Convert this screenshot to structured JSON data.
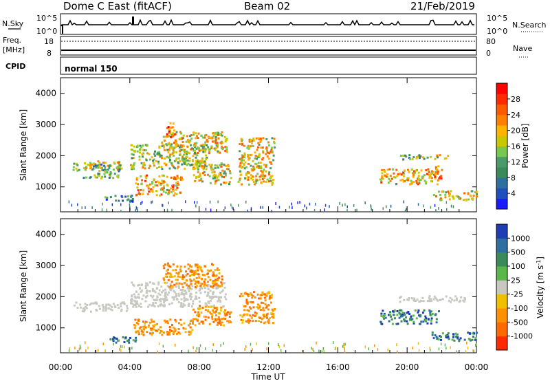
{
  "header": {
    "station": "Dome C East (fitACF)",
    "beam": "Beam 02",
    "date": "21/Feb/2019"
  },
  "top_panels": {
    "nsky_label": "N.Sky",
    "nsky_top": "10^5",
    "nsky_bottom": "10^0",
    "nsearch_label": "N.Search",
    "nsearch_top": "10^5",
    "nsearch_bottom": "10^0",
    "freq_label": "Freq.",
    "freq_unit": "[MHz]",
    "freq_top": "18",
    "freq_bottom": "8",
    "nave_label": "Nave",
    "nave_top": "80",
    "nave_bottom": "0",
    "cpid_label": "CPID",
    "cpid_value": "normal 150"
  },
  "chart_data": [
    {
      "type": "heatmap",
      "name": "power",
      "ylabel": "Slant Range [km]",
      "yticks": [
        "1000",
        "2000",
        "3000",
        "4000"
      ],
      "ylim": [
        200,
        4500
      ],
      "xlim": [
        0,
        24
      ],
      "colorbar": {
        "label": "Power [dB]",
        "ticks": [
          "4",
          "8",
          "12",
          "16",
          "20",
          "24",
          "28"
        ],
        "colors": [
          "#1a1aff",
          "#1f4fbf",
          "#2f6f9f",
          "#3a8a5a",
          "#4a9a6a",
          "#78c850",
          "#c8c800",
          "#ffb400",
          "#ff8000",
          "#ff5a00",
          "#ff2a00",
          "#ff0000"
        ]
      },
      "scatter_regions": [
        {
          "x": [
            0.7,
            3.6
          ],
          "y": [
            1550,
            1850
          ],
          "level": 0.55
        },
        {
          "x": [
            1.8,
            3.4
          ],
          "y": [
            1300,
            1750
          ],
          "level": 0.35
        },
        {
          "x": [
            0.9,
            1.8
          ],
          "y": [
            1280,
            1350
          ],
          "level": 0.3
        },
        {
          "x": [
            2.4,
            4.2
          ],
          "y": [
            550,
            750
          ],
          "level": 0.25
        },
        {
          "x": [
            4.0,
            8.4
          ],
          "y": [
            1600,
            2400
          ],
          "level": 0.5
        },
        {
          "x": [
            4.3,
            7.0
          ],
          "y": [
            750,
            1400
          ],
          "level": 0.65
        },
        {
          "x": [
            5.8,
            9.6
          ],
          "y": [
            2100,
            2800
          ],
          "level": 0.6
        },
        {
          "x": [
            6.0,
            6.6
          ],
          "y": [
            2600,
            3100
          ],
          "level": 0.8
        },
        {
          "x": [
            7.6,
            9.8
          ],
          "y": [
            1100,
            1800
          ],
          "level": 0.55
        },
        {
          "x": [
            10.2,
            12.3
          ],
          "y": [
            1100,
            2600
          ],
          "level": 0.6
        },
        {
          "x": [
            18.4,
            21.8
          ],
          "y": [
            1100,
            1600
          ],
          "level": 0.65
        },
        {
          "x": [
            19.5,
            22.5
          ],
          "y": [
            1900,
            2050
          ],
          "level": 0.45
        },
        {
          "x": [
            21.4,
            24.0
          ],
          "y": [
            600,
            900
          ],
          "level": 0.6
        },
        {
          "x": [
            21.2,
            22.0
          ],
          "y": [
            1300,
            1700
          ],
          "level": 0.7
        }
      ]
    },
    {
      "type": "heatmap",
      "name": "velocity",
      "ylabel": "Slant Range [km]",
      "xlabel": "Time UT",
      "xticks": [
        "00:00",
        "04:00",
        "08:00",
        "12:00",
        "16:00",
        "20:00",
        "00:00"
      ],
      "yticks": [
        "1000",
        "2000",
        "3000",
        "4000"
      ],
      "ylim": [
        200,
        4500
      ],
      "xlim": [
        0,
        24
      ],
      "colorbar": {
        "label": "Velocity [m s^-1]",
        "ticks": [
          "1000",
          "500",
          "100",
          "25",
          "-25",
          "-100",
          "-500",
          "-1000"
        ],
        "colors": [
          "#1e3cb4",
          "#2f6fa0",
          "#3a8a5a",
          "#5ab84a",
          "#c8c8c0",
          "#f0c000",
          "#ff9000",
          "#ff6a00",
          "#ff2a00"
        ]
      },
      "ground_scatter_color": "#c8c8c0",
      "scatter_regions": [
        {
          "x": [
            0.7,
            3.8
          ],
          "y": [
            1550,
            1850
          ],
          "class": "ground"
        },
        {
          "x": [
            4.0,
            9.5
          ],
          "y": [
            1700,
            2500
          ],
          "class": "ground"
        },
        {
          "x": [
            4.2,
            7.6
          ],
          "y": [
            800,
            1300
          ],
          "class": "away"
        },
        {
          "x": [
            5.8,
            9.3
          ],
          "y": [
            2300,
            3100
          ],
          "class": "away"
        },
        {
          "x": [
            7.6,
            9.8
          ],
          "y": [
            1100,
            1750
          ],
          "class": "away"
        },
        {
          "x": [
            10.3,
            12.3
          ],
          "y": [
            1150,
            2200
          ],
          "class": "away"
        },
        {
          "x": [
            2.3,
            4.3
          ],
          "y": [
            550,
            750
          ],
          "class": "toward"
        },
        {
          "x": [
            18.4,
            21.8
          ],
          "y": [
            1150,
            1600
          ],
          "class": "toward"
        },
        {
          "x": [
            21.4,
            24.0
          ],
          "y": [
            600,
            900
          ],
          "class": "toward"
        },
        {
          "x": [
            19.5,
            23.5
          ],
          "y": [
            1850,
            2050
          ],
          "class": "ground"
        }
      ]
    }
  ]
}
